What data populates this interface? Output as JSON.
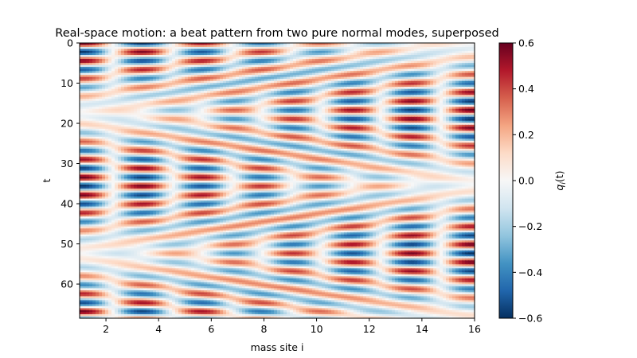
{
  "chart_data": {
    "type": "heatmap",
    "title": "Real-space motion: a beat pattern from two pure normal modes, superposed",
    "xlabel": "mass site i",
    "ylabel": "t",
    "xlim": [
      1,
      16
    ],
    "ylim": [
      68.5,
      0
    ],
    "x_ticks": [
      2,
      4,
      6,
      8,
      10,
      12,
      14,
      16
    ],
    "x_tick_labels": [
      "2",
      "4",
      "6",
      "8",
      "10",
      "12",
      "14",
      "16"
    ],
    "y_ticks": [
      0,
      10,
      20,
      30,
      40,
      50,
      60
    ],
    "y_tick_labels": [
      "0",
      "10",
      "20",
      "30",
      "40",
      "50",
      "60"
    ],
    "colormap": "RdBu_r",
    "colormap_stops": [
      "#053061",
      "#2166ac",
      "#4393c3",
      "#92c5de",
      "#d1e5f0",
      "#f7f7f7",
      "#fddbc7",
      "#f4a582",
      "#d6604d",
      "#b2182b",
      "#67001f"
    ],
    "colorbar": {
      "label": "q_i(t)",
      "label_main": "q",
      "label_sub": "i",
      "label_rest": "(t)",
      "vmin": -0.6,
      "vmax": 0.6,
      "ticks": [
        -0.6,
        -0.4,
        -0.2,
        0.0,
        0.2,
        0.4,
        0.6
      ],
      "tick_labels": [
        "−0.6",
        "−0.4",
        "−0.2",
        "0.0",
        "0.2",
        "0.4",
        "0.6"
      ]
    },
    "sites": 16,
    "time_steps": 69,
    "grid": false
  }
}
